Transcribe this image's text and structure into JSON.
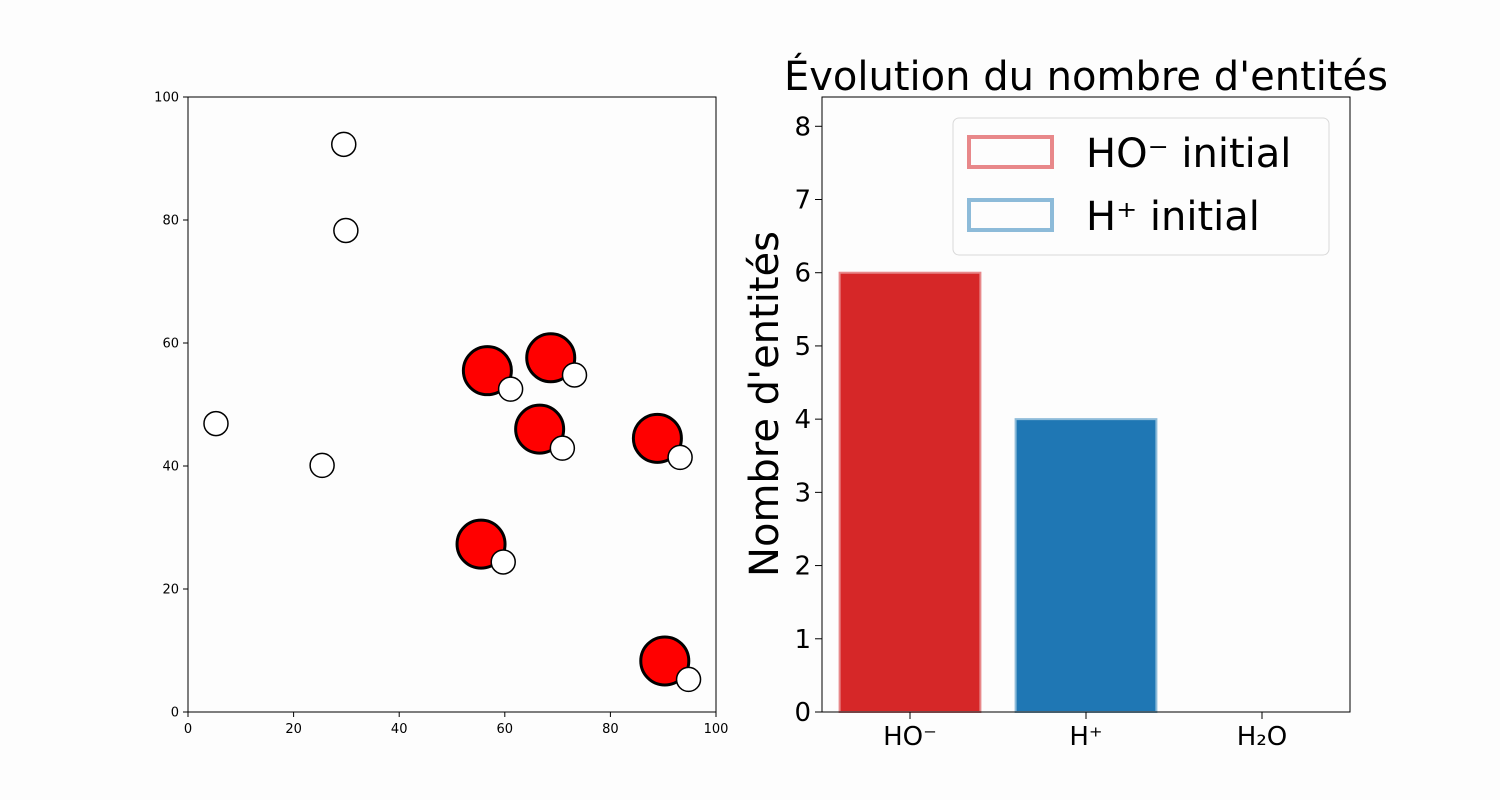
{
  "chart_data": [
    {
      "type": "scatter",
      "title": "",
      "xlabel": "",
      "ylabel": "",
      "xlim": [
        0,
        100
      ],
      "ylim": [
        0,
        100
      ],
      "xticks": [
        "0",
        "20",
        "40",
        "60",
        "80",
        "100"
      ],
      "yticks": [
        "0",
        "20",
        "40",
        "60",
        "80",
        "100"
      ],
      "grid": false,
      "series": [
        {
          "marker": "red-large-circle",
          "color": "#ff0000",
          "points": [
            [
              56.7,
              55.5
            ],
            [
              68.7,
              57.6
            ],
            [
              66.6,
              46.0
            ],
            [
              88.9,
              44.5
            ],
            [
              55.5,
              27.3
            ],
            [
              90.3,
              8.3
            ]
          ]
        },
        {
          "marker": "white-small-circle",
          "color": "#ffffff",
          "points": [
            [
              29.5,
              92.3
            ],
            [
              29.9,
              78.3
            ],
            [
              5.3,
              46.9
            ],
            [
              25.4,
              40.1
            ],
            [
              61.1,
              52.5
            ],
            [
              73.2,
              54.8
            ],
            [
              70.9,
              42.9
            ],
            [
              93.2,
              41.4
            ],
            [
              59.7,
              24.4
            ],
            [
              94.8,
              5.3
            ]
          ]
        }
      ]
    },
    {
      "type": "bar",
      "title": "Évolution du nombre d'entités",
      "xlabel": "",
      "ylabel": "Nombre d'entités",
      "categories": [
        "HO⁻",
        "H⁺",
        "H₂O"
      ],
      "values": [
        6,
        4,
        0
      ],
      "initial_values": [
        6,
        4
      ],
      "colors": [
        "#d62728",
        "#1f77b4",
        "#2ca02c"
      ],
      "initial_colors": [
        "#e8888a",
        "#8dbbd9"
      ],
      "ylim": [
        0,
        8.4
      ],
      "yticks": [
        "0",
        "1",
        "2",
        "3",
        "4",
        "5",
        "6",
        "7",
        "8"
      ],
      "grid": false,
      "legend": {
        "placement": "top-right",
        "entries": [
          "HO⁻ initial",
          "H⁺ initial"
        ]
      }
    }
  ]
}
